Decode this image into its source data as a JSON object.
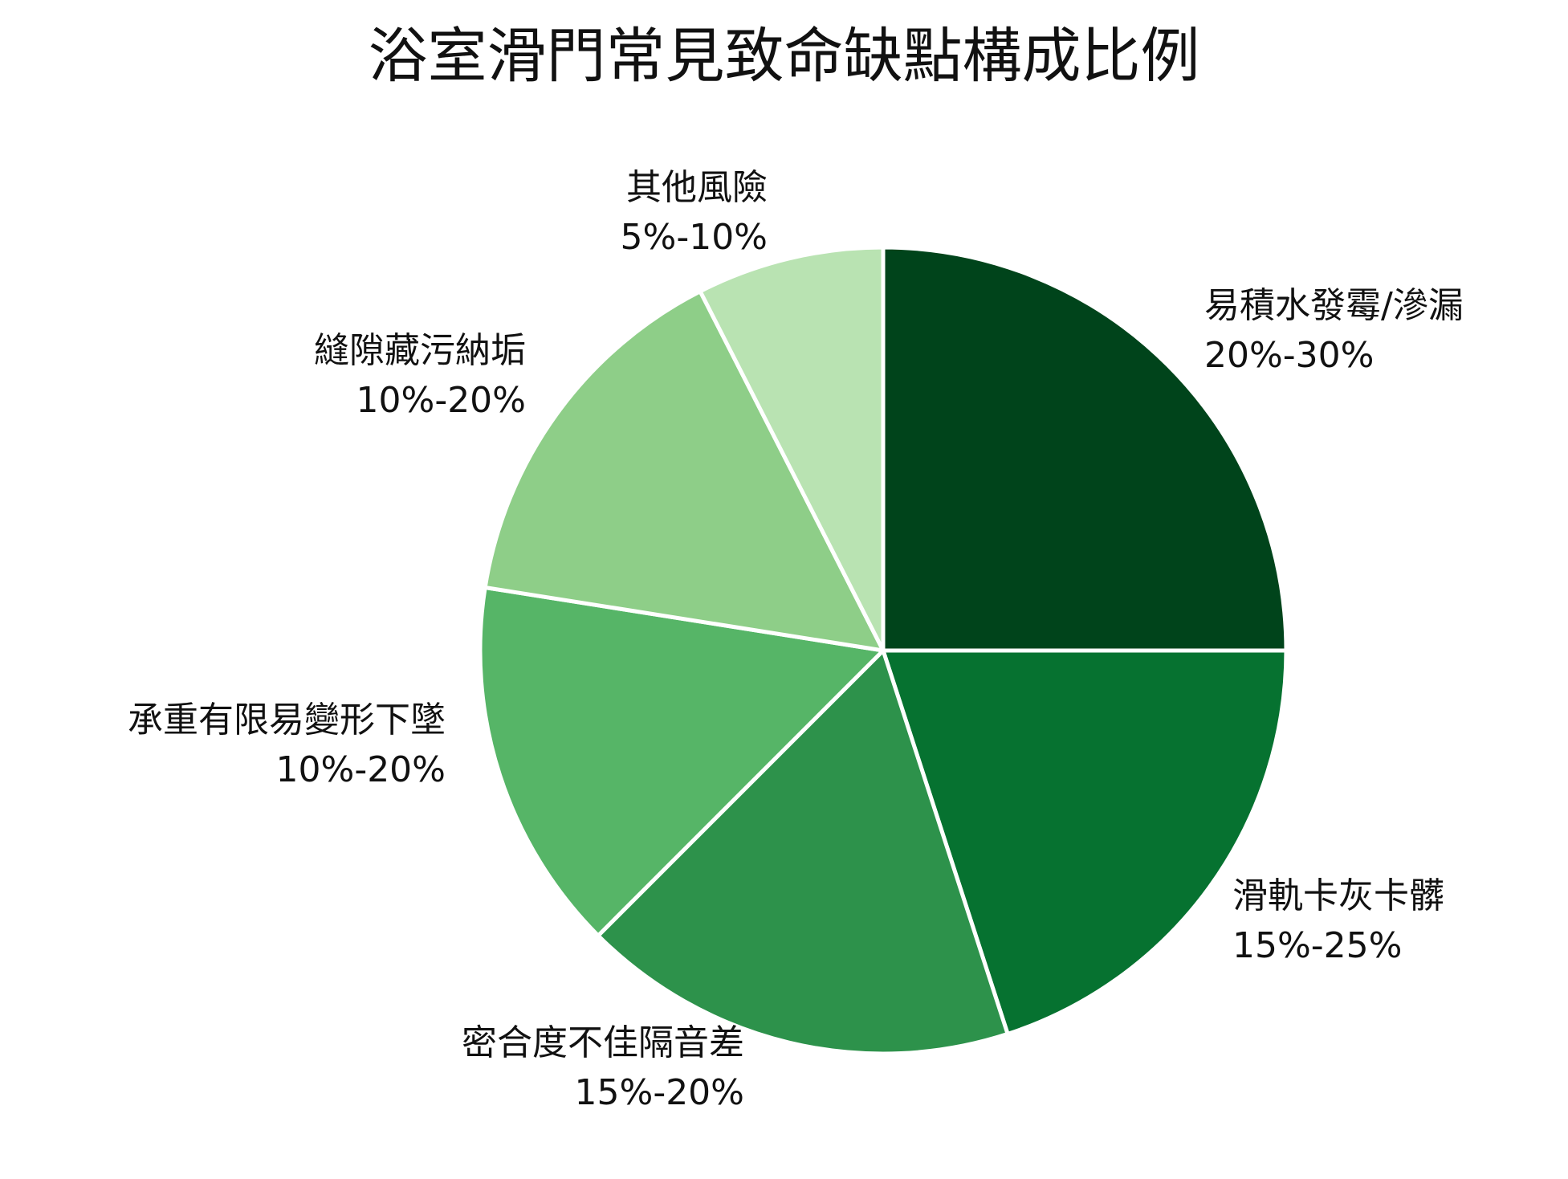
{
  "chart_data": {
    "type": "pie",
    "title": "浴室滑門常見致命缺點構成比例",
    "start": "12 o'clock",
    "direction": "clockwise",
    "slices": [
      {
        "label": "易積水發霉/滲漏",
        "range": "20%-30%",
        "value": 25.0,
        "color": "#00441b"
      },
      {
        "label": "滑軌卡灰卡髒",
        "range": "15%-25%",
        "value": 20.0,
        "color": "#067230"
      },
      {
        "label": "密合度不佳隔音差",
        "range": "15%-20%",
        "value": 17.5,
        "color": "#2d924b"
      },
      {
        "label": "承重有限易變形下墜",
        "range": "10%-20%",
        "value": 15.0,
        "color": "#56b567"
      },
      {
        "label": "縫隙藏污納垢",
        "range": "10%-20%",
        "value": 15.0,
        "color": "#8ece88"
      },
      {
        "label": "其他風險",
        "range": "5%-10%",
        "value": 7.5,
        "color": "#b9e3b2"
      }
    ]
  }
}
